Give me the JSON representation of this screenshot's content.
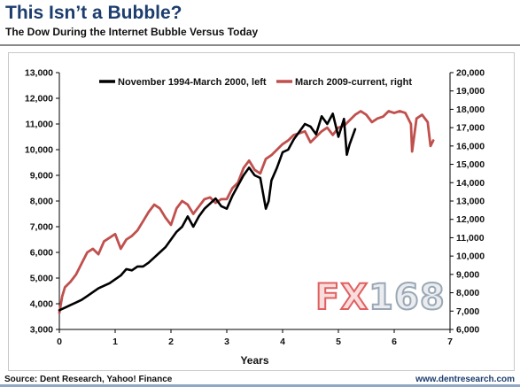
{
  "header": {
    "title": "This Isn’t a Bubble?",
    "subtitle": "The Dow During the Internet Bubble Versus Today"
  },
  "footer": {
    "source": "Source: Dent Research, Yahoo! Finance",
    "url": "www.dentresearch.com"
  },
  "watermark": {
    "part_a": "FX",
    "part_b": "168"
  },
  "colors": {
    "series1": "#000000",
    "series2": "#c0504d",
    "title": "#1c3d6e"
  },
  "chart_data": {
    "type": "line",
    "xlabel": "Years",
    "xlim": [
      0,
      7
    ],
    "x_ticks": [
      0,
      1,
      2,
      3,
      4,
      5,
      6,
      7
    ],
    "y_left": {
      "lim": [
        3000,
        13000
      ],
      "ticks": [
        "3,000",
        "4,000",
        "5,000",
        "6,000",
        "7,000",
        "8,000",
        "9,000",
        "10,000",
        "11,000",
        "12,000",
        "13,000"
      ]
    },
    "y_right": {
      "lim": [
        6000,
        20000
      ],
      "ticks": [
        "6,000",
        "7,000",
        "8,000",
        "9,000",
        "10,000",
        "11,000",
        "12,000",
        "13,000",
        "14,000",
        "15,000",
        "16,000",
        "17,000",
        "18,000",
        "19,000",
        "20,000"
      ]
    },
    "legend_position": "top",
    "grid": false,
    "series": [
      {
        "name": "November 1994-March 2000, left",
        "axis": "left",
        "color": "#000000",
        "x": [
          0,
          0.1,
          0.2,
          0.3,
          0.4,
          0.5,
          0.6,
          0.7,
          0.8,
          0.9,
          1.0,
          1.1,
          1.2,
          1.3,
          1.4,
          1.5,
          1.6,
          1.7,
          1.8,
          1.9,
          2.0,
          2.1,
          2.2,
          2.3,
          2.4,
          2.5,
          2.6,
          2.7,
          2.8,
          2.9,
          3.0,
          3.1,
          3.2,
          3.3,
          3.4,
          3.5,
          3.6,
          3.7,
          3.75,
          3.8,
          3.9,
          4.0,
          4.1,
          4.2,
          4.3,
          4.4,
          4.5,
          4.6,
          4.7,
          4.8,
          4.9,
          5.0,
          5.1,
          5.15,
          5.2,
          5.3
        ],
        "y": [
          3750,
          3850,
          3950,
          4050,
          4150,
          4300,
          4450,
          4600,
          4700,
          4800,
          4950,
          5100,
          5350,
          5300,
          5450,
          5450,
          5600,
          5800,
          6000,
          6200,
          6500,
          6800,
          7000,
          7400,
          7000,
          7400,
          7700,
          7900,
          8100,
          7800,
          7700,
          8200,
          8600,
          9000,
          9300,
          9000,
          8900,
          7700,
          8000,
          8800,
          9300,
          9900,
          10000,
          10400,
          10700,
          11000,
          10900,
          10600,
          11300,
          11000,
          11400,
          10500,
          11200,
          9800,
          10200,
          10800
        ]
      },
      {
        "name": "March 2009-current, right",
        "axis": "right",
        "color": "#c0504d",
        "x": [
          0,
          0.05,
          0.1,
          0.2,
          0.3,
          0.4,
          0.5,
          0.6,
          0.7,
          0.8,
          0.9,
          1.0,
          1.1,
          1.2,
          1.3,
          1.4,
          1.5,
          1.6,
          1.7,
          1.8,
          1.9,
          2.0,
          2.1,
          2.2,
          2.3,
          2.4,
          2.5,
          2.6,
          2.7,
          2.8,
          2.9,
          3.0,
          3.1,
          3.2,
          3.3,
          3.4,
          3.5,
          3.6,
          3.7,
          3.8,
          3.9,
          4.0,
          4.1,
          4.2,
          4.3,
          4.4,
          4.5,
          4.6,
          4.7,
          4.8,
          4.9,
          5.0,
          5.1,
          5.2,
          5.3,
          5.4,
          5.5,
          5.6,
          5.7,
          5.8,
          5.9,
          6.0,
          6.1,
          6.2,
          6.3,
          6.32,
          6.4,
          6.5,
          6.6,
          6.65,
          6.7
        ],
        "y": [
          6900,
          7800,
          8300,
          8600,
          9000,
          9600,
          10200,
          10400,
          10100,
          10800,
          11000,
          11200,
          10400,
          10900,
          11100,
          11400,
          11900,
          12400,
          12800,
          12600,
          12100,
          11700,
          12600,
          13000,
          12800,
          12300,
          12700,
          13100,
          13200,
          12900,
          13100,
          13100,
          13700,
          14000,
          14800,
          15200,
          14700,
          14500,
          15300,
          15500,
          15800,
          16100,
          16300,
          16600,
          16700,
          16800,
          16200,
          16500,
          16800,
          17000,
          16600,
          17000,
          17100,
          17400,
          17700,
          17900,
          17700,
          17300,
          17500,
          17600,
          17900,
          17800,
          17900,
          17800,
          17200,
          15700,
          17500,
          17700,
          17300,
          16000,
          16300
        ]
      }
    ]
  }
}
